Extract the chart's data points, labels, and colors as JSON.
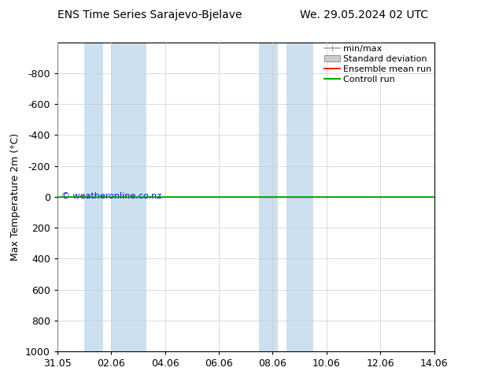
{
  "title_left": "ENS Time Series Sarajevo-Bjelave",
  "title_right": "We. 29.05.2024 02 UTC",
  "ylabel": "Max Temperature 2m (°C)",
  "ylim_top": -1000,
  "ylim_bottom": 1000,
  "yticks": [
    -800,
    -600,
    -400,
    -200,
    0,
    200,
    400,
    600,
    800,
    1000
  ],
  "xtick_labels": [
    "31.05",
    "02.06",
    "04.06",
    "06.06",
    "08.06",
    "10.06",
    "12.06",
    "14.06"
  ],
  "xtick_positions": [
    0,
    2,
    4,
    6,
    8,
    10,
    12,
    14
  ],
  "xlim": [
    0,
    14
  ],
  "blue_bands": [
    [
      1.0,
      1.7
    ],
    [
      2.0,
      3.3
    ],
    [
      7.5,
      8.2
    ],
    [
      8.5,
      9.5
    ]
  ],
  "green_line_y": 0,
  "red_line_y": 0,
  "copyright_text": "© weatheronline.co.nz",
  "background_color": "#ffffff",
  "plot_bg_color": "#ffffff",
  "band_color": "#cce0f0",
  "grid_color": "#cccccc",
  "title_fontsize": 10,
  "ylabel_fontsize": 9,
  "tick_fontsize": 9,
  "legend_fontsize": 8,
  "green_color": "#00aa00",
  "red_color": "#ff2222",
  "min_max_color": "#aaaaaa",
  "std_dev_color": "#cccccc"
}
